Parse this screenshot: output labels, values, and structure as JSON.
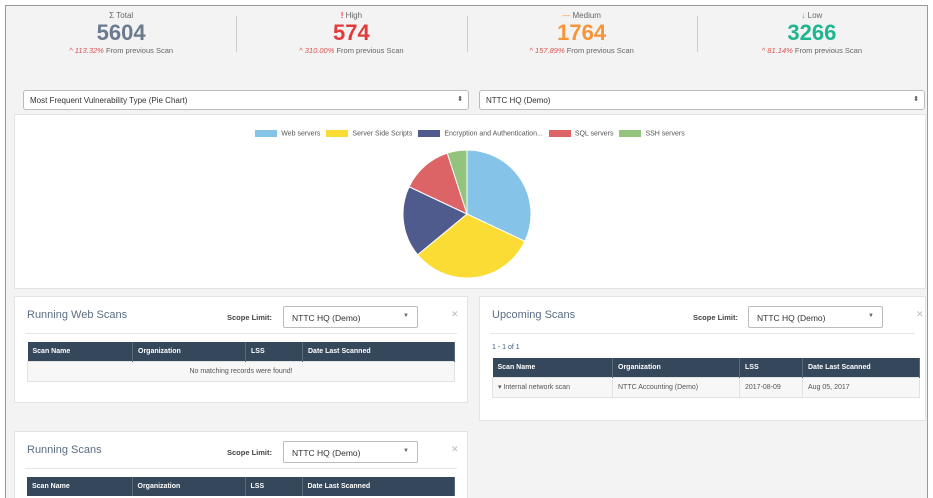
{
  "stats": [
    {
      "icon": "Σ",
      "label": "Total",
      "value": "5604",
      "change": "113.32%",
      "suffix": "From previous Scan",
      "color": "#6b7a8f"
    },
    {
      "icon": "!",
      "label": "High",
      "value": "574",
      "change": "310.00%",
      "suffix": "From previous Scan",
      "color": "#e23b3b"
    },
    {
      "icon": "—",
      "label": "Medium",
      "value": "1764",
      "change": "157.89%",
      "suffix": "From previous Scan",
      "color": "#f7943a"
    },
    {
      "icon": "↓",
      "label": "Low",
      "value": "3266",
      "change": "81.14%",
      "suffix": "From previous Scan",
      "color": "#1fb58f"
    }
  ],
  "chart_select": "Most Frequent Vulnerability Type (Pie Chart)",
  "org_select": "NTTC HQ (Demo)",
  "chart_data": {
    "type": "pie",
    "legend_position": "top",
    "categories": [
      "Web servers",
      "Server Side Scripts",
      "Encryption and Authentication...",
      "SQL servers",
      "SSH servers"
    ],
    "values": [
      32,
      32,
      18,
      13,
      5
    ],
    "colors": [
      "#85c4e8",
      "#fbdc35",
      "#4e5b8c",
      "#dc6466",
      "#93c47d"
    ]
  },
  "running_web": {
    "title": "Running Web Scans",
    "scope_label": "Scope Limit:",
    "scope": "NTTC HQ (Demo)",
    "columns": [
      "Scan Name",
      "Organization",
      "LSS",
      "Date Last Scanned"
    ],
    "empty": "No matching records were found!"
  },
  "upcoming": {
    "title": "Upcoming Scans",
    "scope_label": "Scope Limit:",
    "scope": "NTTC HQ (Demo)",
    "count": "1 - 1 of 1",
    "columns": [
      "Scan Name",
      "Organization",
      "LSS",
      "Date Last Scanned"
    ],
    "rows": [
      [
        "Internal network scan",
        "NTTC Accounting (Demo)",
        "2017-08-09",
        "Aug 05, 2017"
      ]
    ]
  },
  "running": {
    "title": "Running Scans",
    "scope_label": "Scope Limit:",
    "scope": "NTTC HQ (Demo)",
    "columns": [
      "Scan Name",
      "Organization",
      "LSS",
      "Date Last Scanned"
    ]
  }
}
